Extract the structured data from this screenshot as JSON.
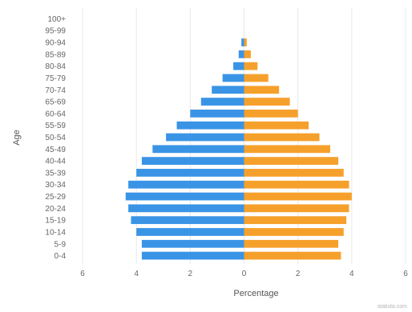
{
  "chart_data": {
    "type": "bar",
    "orientation": "horizontal",
    "subtype": "population-pyramid",
    "ylabel": "Age",
    "xlabel": "Percentage",
    "xlim": [
      -6,
      6
    ],
    "xticks": [
      -6,
      -4,
      -2,
      0,
      2,
      4,
      6
    ],
    "xtick_labels": [
      "6",
      "4",
      "2",
      "0",
      "2",
      "4",
      "6"
    ],
    "grid": true,
    "categories": [
      "0-4",
      "5-9",
      "10-14",
      "15-19",
      "20-24",
      "25-29",
      "30-34",
      "35-39",
      "40-44",
      "45-49",
      "50-54",
      "55-59",
      "60-64",
      "65-69",
      "70-74",
      "75-79",
      "80-84",
      "85-89",
      "90-94",
      "95-99",
      "100+"
    ],
    "series": [
      {
        "color": "#3a94e6",
        "values": [
          3.8,
          3.8,
          4.0,
          4.2,
          4.3,
          4.4,
          4.3,
          4.0,
          3.8,
          3.4,
          2.9,
          2.5,
          2.0,
          1.6,
          1.2,
          0.8,
          0.4,
          0.2,
          0.1,
          0.0,
          0.0
        ]
      },
      {
        "color": "#f6a02c",
        "values": [
          3.6,
          3.5,
          3.7,
          3.8,
          3.9,
          4.0,
          3.9,
          3.7,
          3.5,
          3.2,
          2.8,
          2.4,
          2.0,
          1.7,
          1.3,
          0.9,
          0.5,
          0.25,
          0.1,
          0.0,
          0.0
        ]
      }
    ]
  },
  "watermark": "statista.com"
}
